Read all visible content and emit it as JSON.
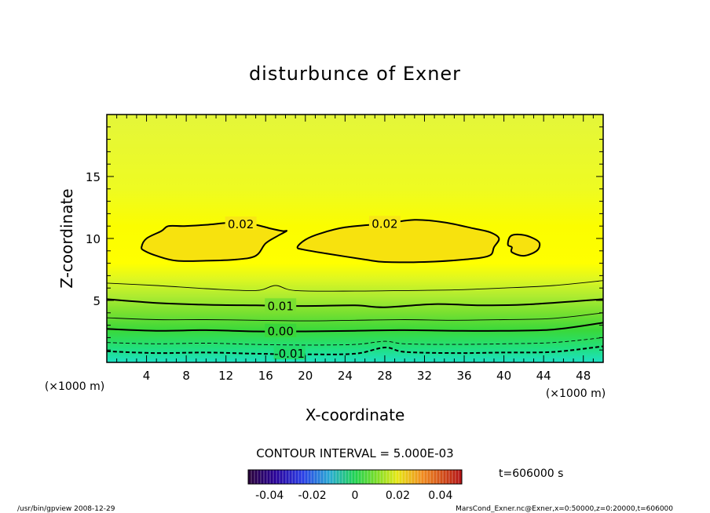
{
  "chart_data": {
    "type": "contour",
    "title": "disturbunce of Exner",
    "xlabel": "X-coordinate",
    "ylabel": "Z-coordinate",
    "x_unit": "(×1000 m)",
    "z_unit": "(×1000 m)",
    "xlim": [
      0,
      50
    ],
    "ylim": [
      0,
      20
    ],
    "x_ticks": [
      "4",
      "8",
      "12",
      "16",
      "20",
      "24",
      "28",
      "32",
      "36",
      "40",
      "44",
      "48"
    ],
    "y_ticks": [
      "5",
      "10",
      "15"
    ],
    "contour_interval": "CONTOUR INTERVAL = 5.000E-03",
    "contour_labels": [
      "0.02",
      "0.02",
      "0.01",
      "0.00",
      "-0.01"
    ],
    "colorbar": {
      "ticks": [
        "-0.04",
        "-0.02",
        "0",
        "0.02",
        "0.04"
      ],
      "range": [
        -0.05,
        0.05
      ]
    },
    "time_label": "t=606000 s",
    "footer_left": "/usr/bin/gpview   2008-12-29",
    "footer_right": "MarsCond_Exner.nc@Exner,x=0:50000,z=0:20000,t=606000",
    "contours": [
      {
        "level": -0.01,
        "style": "dashed",
        "points": [
          [
            0,
            0.9
          ],
          [
            5,
            0.75
          ],
          [
            10,
            0.8
          ],
          [
            15,
            0.7
          ],
          [
            20,
            0.65
          ],
          [
            25,
            0.7
          ],
          [
            28,
            1.2
          ],
          [
            30,
            0.85
          ],
          [
            35,
            0.75
          ],
          [
            40,
            0.8
          ],
          [
            45,
            0.85
          ],
          [
            50,
            1.3
          ]
        ]
      },
      {
        "level": -0.005,
        "style": "dashed",
        "points": [
          [
            0,
            1.6
          ],
          [
            5,
            1.5
          ],
          [
            10,
            1.55
          ],
          [
            15,
            1.45
          ],
          [
            20,
            1.4
          ],
          [
            25,
            1.45
          ],
          [
            28,
            1.7
          ],
          [
            30,
            1.5
          ],
          [
            35,
            1.45
          ],
          [
            40,
            1.5
          ],
          [
            45,
            1.6
          ],
          [
            50,
            2.0
          ]
        ]
      },
      {
        "level": 0.0,
        "style": "solid",
        "points": [
          [
            0,
            2.7
          ],
          [
            5,
            2.55
          ],
          [
            10,
            2.6
          ],
          [
            15,
            2.5
          ],
          [
            20,
            2.5
          ],
          [
            25,
            2.55
          ],
          [
            30,
            2.6
          ],
          [
            35,
            2.55
          ],
          [
            40,
            2.55
          ],
          [
            45,
            2.65
          ],
          [
            50,
            3.2
          ]
        ]
      },
      {
        "level": 0.005,
        "style": "solid",
        "points": [
          [
            0,
            3.6
          ],
          [
            5,
            3.45
          ],
          [
            10,
            3.45
          ],
          [
            15,
            3.4
          ],
          [
            20,
            3.35
          ],
          [
            25,
            3.4
          ],
          [
            30,
            3.45
          ],
          [
            35,
            3.4
          ],
          [
            40,
            3.45
          ],
          [
            45,
            3.55
          ],
          [
            50,
            4.0
          ]
        ]
      },
      {
        "level": 0.01,
        "style": "solid",
        "points": [
          [
            0,
            5.1
          ],
          [
            5,
            4.8
          ],
          [
            10,
            4.65
          ],
          [
            15,
            4.6
          ],
          [
            20,
            4.55
          ],
          [
            25,
            4.6
          ],
          [
            28,
            4.45
          ],
          [
            33,
            4.7
          ],
          [
            38,
            4.6
          ],
          [
            43,
            4.7
          ],
          [
            50,
            5.1
          ]
        ]
      },
      {
        "level": 0.015,
        "style": "solid",
        "points": [
          [
            0,
            6.4
          ],
          [
            5,
            6.2
          ],
          [
            10,
            5.95
          ],
          [
            15,
            5.8
          ],
          [
            17,
            6.2
          ],
          [
            19,
            5.8
          ],
          [
            25,
            5.75
          ],
          [
            30,
            5.8
          ],
          [
            35,
            5.85
          ],
          [
            40,
            6.0
          ],
          [
            45,
            6.2
          ],
          [
            50,
            6.6
          ]
        ]
      }
    ],
    "closed_contours": [
      {
        "level": 0.02,
        "points": [
          [
            3.5,
            9.3
          ],
          [
            4.0,
            10.0
          ],
          [
            5.5,
            10.6
          ],
          [
            6.2,
            11.0
          ],
          [
            7.8,
            11.0
          ],
          [
            10,
            11.1
          ],
          [
            13,
            11.3
          ],
          [
            15,
            11.1
          ],
          [
            16.5,
            10.8
          ],
          [
            17.7,
            10.6
          ],
          [
            18.1,
            10.6
          ],
          [
            17.2,
            10.2
          ],
          [
            16.0,
            9.6
          ],
          [
            15.0,
            8.6
          ],
          [
            13,
            8.3
          ],
          [
            10,
            8.2
          ],
          [
            7,
            8.2
          ],
          [
            5,
            8.6
          ],
          [
            3.8,
            9.0
          ]
        ]
      },
      {
        "level": 0.02,
        "points": [
          [
            19.2,
            9.3
          ],
          [
            20,
            9.9
          ],
          [
            21.5,
            10.4
          ],
          [
            24,
            10.9
          ],
          [
            28,
            11.2
          ],
          [
            31,
            11.5
          ],
          [
            34,
            11.3
          ],
          [
            37,
            10.8
          ],
          [
            38.6,
            10.5
          ],
          [
            39.5,
            10.0
          ],
          [
            39.0,
            9.3
          ],
          [
            38.5,
            8.6
          ],
          [
            36,
            8.3
          ],
          [
            32,
            8.1
          ],
          [
            28,
            8.1
          ],
          [
            26,
            8.3
          ],
          [
            22,
            8.8
          ],
          [
            19.8,
            9.1
          ]
        ]
      },
      {
        "level": 0.02,
        "points": [
          [
            40.4,
            9.5
          ],
          [
            40.7,
            10.2
          ],
          [
            41.8,
            10.3
          ],
          [
            43.0,
            10.0
          ],
          [
            43.6,
            9.6
          ],
          [
            43.3,
            9.0
          ],
          [
            42.0,
            8.6
          ],
          [
            40.8,
            8.9
          ],
          [
            40.8,
            9.3
          ]
        ]
      }
    ]
  }
}
